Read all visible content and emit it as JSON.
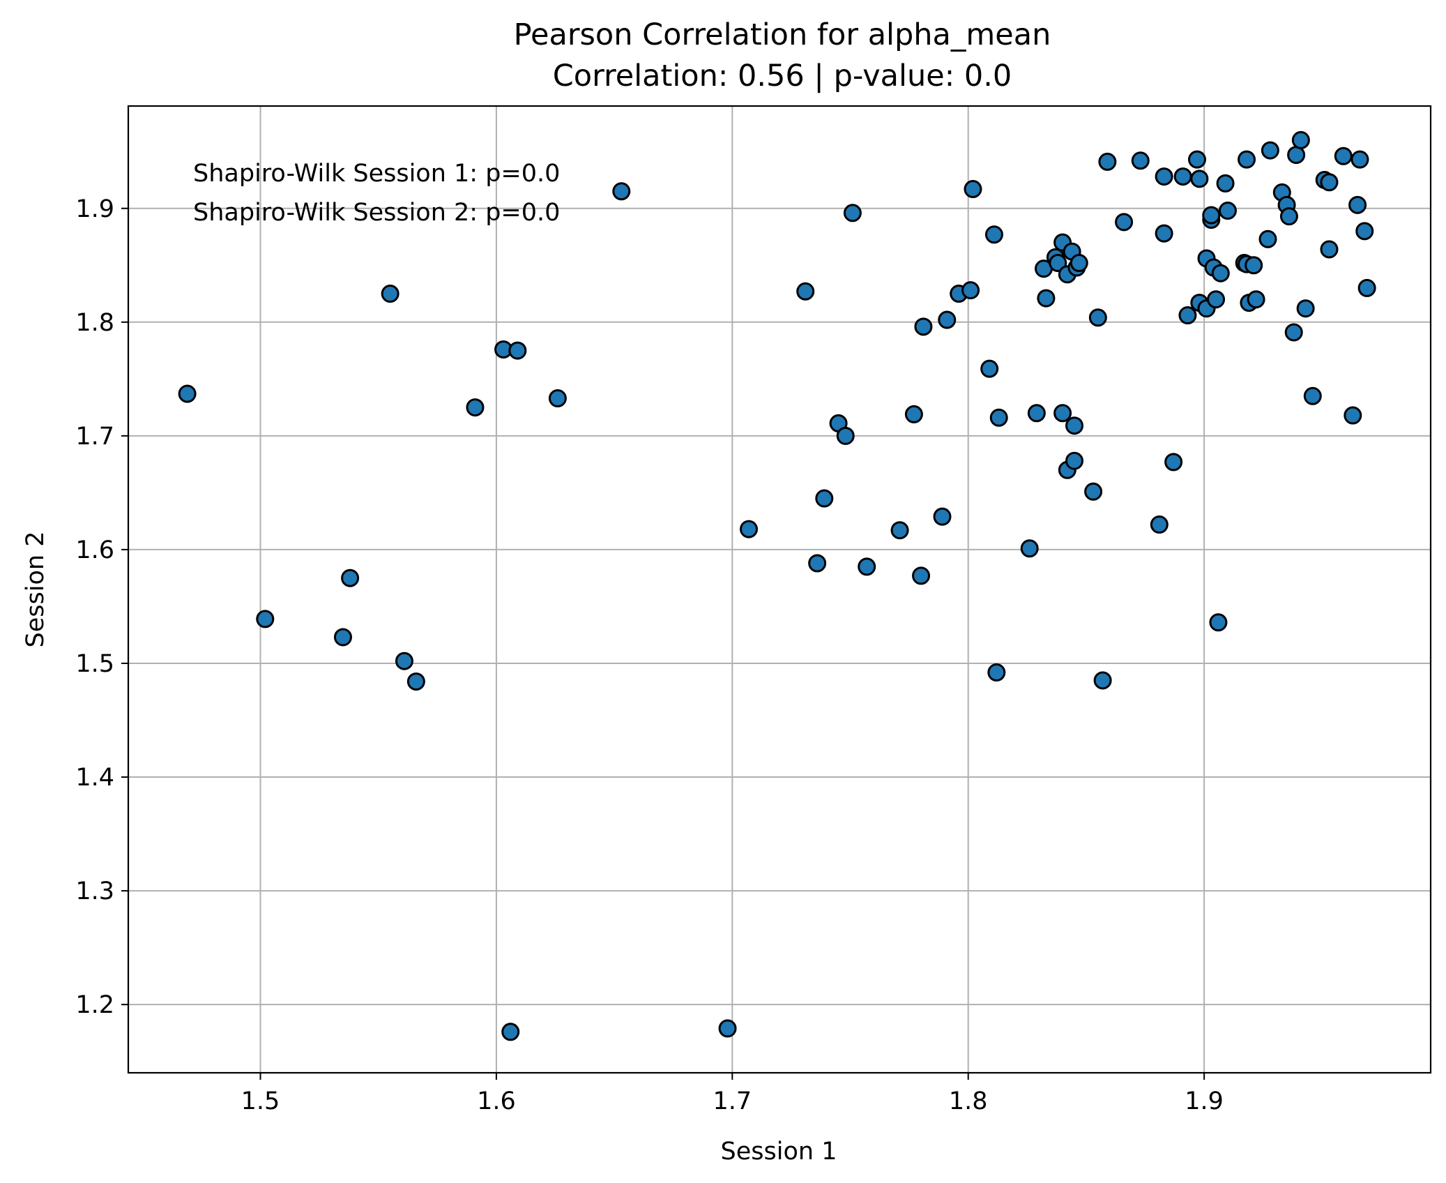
{
  "chart_data": {
    "type": "scatter",
    "title": "Pearson Correlation for alpha_mean",
    "subtitle": "Correlation: 0.56 | p-value: 0.0",
    "xlabel": "Session 1",
    "ylabel": "Session 2",
    "xlim": [
      1.444,
      1.996
    ],
    "ylim": [
      1.14,
      1.99
    ],
    "xticks": [
      1.5,
      1.6,
      1.7,
      1.8,
      1.9
    ],
    "xtick_labels": [
      "1.5",
      "1.6",
      "1.7",
      "1.8",
      "1.9"
    ],
    "yticks": [
      1.2,
      1.3,
      1.4,
      1.5,
      1.6,
      1.7,
      1.8,
      1.9
    ],
    "ytick_labels": [
      "1.2",
      "1.3",
      "1.4",
      "1.5",
      "1.6",
      "1.7",
      "1.8",
      "1.9"
    ],
    "grid": true,
    "annotations": [
      "Shapiro-Wilk Session 1: p=0.0",
      "Shapiro-Wilk Session 2: p=0.0"
    ],
    "marker_color": "#1f77b4",
    "marker_edge_color": "#000000",
    "points": [
      [
        1.469,
        1.737
      ],
      [
        1.502,
        1.539
      ],
      [
        1.535,
        1.523
      ],
      [
        1.538,
        1.575
      ],
      [
        1.555,
        1.825
      ],
      [
        1.561,
        1.502
      ],
      [
        1.566,
        1.484
      ],
      [
        1.591,
        1.725
      ],
      [
        1.603,
        1.776
      ],
      [
        1.609,
        1.775
      ],
      [
        1.606,
        1.176
      ],
      [
        1.626,
        1.733
      ],
      [
        1.653,
        1.915
      ],
      [
        1.698,
        1.179
      ],
      [
        1.707,
        1.618
      ],
      [
        1.731,
        1.827
      ],
      [
        1.736,
        1.588
      ],
      [
        1.739,
        1.645
      ],
      [
        1.745,
        1.711
      ],
      [
        1.748,
        1.7
      ],
      [
        1.751,
        1.896
      ],
      [
        1.757,
        1.585
      ],
      [
        1.771,
        1.617
      ],
      [
        1.777,
        1.719
      ],
      [
        1.78,
        1.577
      ],
      [
        1.781,
        1.796
      ],
      [
        1.789,
        1.629
      ],
      [
        1.791,
        1.802
      ],
      [
        1.796,
        1.825
      ],
      [
        1.801,
        1.828
      ],
      [
        1.802,
        1.917
      ],
      [
        1.809,
        1.759
      ],
      [
        1.811,
        1.877
      ],
      [
        1.812,
        1.492
      ],
      [
        1.813,
        1.716
      ],
      [
        1.826,
        1.601
      ],
      [
        1.829,
        1.72
      ],
      [
        1.832,
        1.847
      ],
      [
        1.833,
        1.821
      ],
      [
        1.837,
        1.857
      ],
      [
        1.838,
        1.852
      ],
      [
        1.84,
        1.87
      ],
      [
        1.84,
        1.72
      ],
      [
        1.842,
        1.67
      ],
      [
        1.842,
        1.842
      ],
      [
        1.844,
        1.862
      ],
      [
        1.845,
        1.678
      ],
      [
        1.845,
        1.709
      ],
      [
        1.846,
        1.848
      ],
      [
        1.847,
        1.852
      ],
      [
        1.853,
        1.651
      ],
      [
        1.855,
        1.804
      ],
      [
        1.857,
        1.485
      ],
      [
        1.859,
        1.941
      ],
      [
        1.866,
        1.888
      ],
      [
        1.873,
        1.942
      ],
      [
        1.881,
        1.622
      ],
      [
        1.883,
        1.928
      ],
      [
        1.883,
        1.878
      ],
      [
        1.887,
        1.677
      ],
      [
        1.891,
        1.928
      ],
      [
        1.893,
        1.806
      ],
      [
        1.897,
        1.943
      ],
      [
        1.898,
        1.926
      ],
      [
        1.898,
        1.817
      ],
      [
        1.901,
        1.856
      ],
      [
        1.901,
        1.812
      ],
      [
        1.903,
        1.89
      ],
      [
        1.903,
        1.894
      ],
      [
        1.904,
        1.848
      ],
      [
        1.905,
        1.82
      ],
      [
        1.906,
        1.536
      ],
      [
        1.907,
        1.843
      ],
      [
        1.909,
        1.922
      ],
      [
        1.91,
        1.898
      ],
      [
        1.917,
        1.852
      ],
      [
        1.918,
        1.943
      ],
      [
        1.918,
        1.851
      ],
      [
        1.919,
        1.817
      ],
      [
        1.921,
        1.85
      ],
      [
        1.922,
        1.82
      ],
      [
        1.927,
        1.873
      ],
      [
        1.928,
        1.951
      ],
      [
        1.933,
        1.914
      ],
      [
        1.935,
        1.903
      ],
      [
        1.936,
        1.893
      ],
      [
        1.938,
        1.791
      ],
      [
        1.939,
        1.947
      ],
      [
        1.941,
        1.96
      ],
      [
        1.943,
        1.812
      ],
      [
        1.946,
        1.735
      ],
      [
        1.951,
        1.925
      ],
      [
        1.953,
        1.923
      ],
      [
        1.953,
        1.864
      ],
      [
        1.959,
        1.946
      ],
      [
        1.963,
        1.718
      ],
      [
        1.965,
        1.903
      ],
      [
        1.966,
        1.943
      ],
      [
        1.968,
        1.88
      ],
      [
        1.969,
        1.83
      ]
    ]
  }
}
